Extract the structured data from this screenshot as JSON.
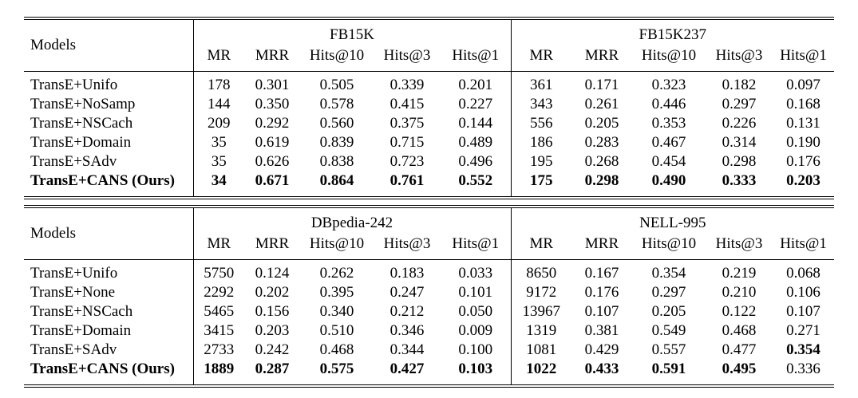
{
  "page": {
    "background_color": "#ffffff",
    "text_color": "#000000",
    "rule_color": "#000000"
  },
  "tables": [
    {
      "models_header": "Models",
      "groups": [
        {
          "name": "FB15K",
          "metrics": [
            "MR",
            "MRR",
            "Hits@10",
            "Hits@3",
            "Hits@1"
          ]
        },
        {
          "name": "FB15K237",
          "metrics": [
            "MR",
            "MRR",
            "Hits@10",
            "Hits@3",
            "Hits@1"
          ]
        }
      ],
      "rows": [
        {
          "model": "TransE+Unifo",
          "model_bold": false,
          "values": [
            "178",
            "0.301",
            "0.505",
            "0.339",
            "0.201",
            "361",
            "0.171",
            "0.323",
            "0.182",
            "0.097"
          ],
          "bold": [
            false,
            false,
            false,
            false,
            false,
            false,
            false,
            false,
            false,
            false
          ]
        },
        {
          "model": "TransE+NoSamp",
          "model_bold": false,
          "values": [
            "144",
            "0.350",
            "0.578",
            "0.415",
            "0.227",
            "343",
            "0.261",
            "0.446",
            "0.297",
            "0.168"
          ],
          "bold": [
            false,
            false,
            false,
            false,
            false,
            false,
            false,
            false,
            false,
            false
          ]
        },
        {
          "model": "TransE+NSCach",
          "model_bold": false,
          "values": [
            "209",
            "0.292",
            "0.560",
            "0.375",
            "0.144",
            "556",
            "0.205",
            "0.353",
            "0.226",
            "0.131"
          ],
          "bold": [
            false,
            false,
            false,
            false,
            false,
            false,
            false,
            false,
            false,
            false
          ]
        },
        {
          "model": "TransE+Domain",
          "model_bold": false,
          "values": [
            "35",
            "0.619",
            "0.839",
            "0.715",
            "0.489",
            "186",
            "0.283",
            "0.467",
            "0.314",
            "0.190"
          ],
          "bold": [
            false,
            false,
            false,
            false,
            false,
            false,
            false,
            false,
            false,
            false
          ]
        },
        {
          "model": "TransE+SAdv",
          "model_bold": false,
          "values": [
            "35",
            "0.626",
            "0.838",
            "0.723",
            "0.496",
            "195",
            "0.268",
            "0.454",
            "0.298",
            "0.176"
          ],
          "bold": [
            false,
            false,
            false,
            false,
            false,
            false,
            false,
            false,
            false,
            false
          ]
        },
        {
          "model": "TransE+CANS (Ours)",
          "model_bold": true,
          "values": [
            "34",
            "0.671",
            "0.864",
            "0.761",
            "0.552",
            "175",
            "0.298",
            "0.490",
            "0.333",
            "0.203"
          ],
          "bold": [
            true,
            true,
            true,
            true,
            true,
            true,
            true,
            true,
            true,
            true
          ]
        }
      ]
    },
    {
      "models_header": "Models",
      "groups": [
        {
          "name": "DBpedia-242",
          "metrics": [
            "MR",
            "MRR",
            "Hits@10",
            "Hits@3",
            "Hits@1"
          ]
        },
        {
          "name": "NELL-995",
          "metrics": [
            "MR",
            "MRR",
            "Hits@10",
            "Hits@3",
            "Hits@1"
          ]
        }
      ],
      "rows": [
        {
          "model": "TransE+Unifo",
          "model_bold": false,
          "values": [
            "5750",
            "0.124",
            "0.262",
            "0.183",
            "0.033",
            "8650",
            "0.167",
            "0.354",
            "0.219",
            "0.068"
          ],
          "bold": [
            false,
            false,
            false,
            false,
            false,
            false,
            false,
            false,
            false,
            false
          ]
        },
        {
          "model": "TransE+None",
          "model_bold": false,
          "values": [
            "2292",
            "0.202",
            "0.395",
            "0.247",
            "0.101",
            "9172",
            "0.176",
            "0.297",
            "0.210",
            "0.106"
          ],
          "bold": [
            false,
            false,
            false,
            false,
            false,
            false,
            false,
            false,
            false,
            false
          ]
        },
        {
          "model": "TransE+NSCach",
          "model_bold": false,
          "values": [
            "5465",
            "0.156",
            "0.340",
            "0.212",
            "0.050",
            "13967",
            "0.107",
            "0.205",
            "0.122",
            "0.107"
          ],
          "bold": [
            false,
            false,
            false,
            false,
            false,
            false,
            false,
            false,
            false,
            false
          ]
        },
        {
          "model": "TransE+Domain",
          "model_bold": false,
          "values": [
            "3415",
            "0.203",
            "0.510",
            "0.346",
            "0.009",
            "1319",
            "0.381",
            "0.549",
            "0.468",
            "0.271"
          ],
          "bold": [
            false,
            false,
            false,
            false,
            false,
            false,
            false,
            false,
            false,
            false
          ]
        },
        {
          "model": "TransE+SAdv",
          "model_bold": false,
          "values": [
            "2733",
            "0.242",
            "0.468",
            "0.344",
            "0.100",
            "1081",
            "0.429",
            "0.557",
            "0.477",
            "0.354"
          ],
          "bold": [
            false,
            false,
            false,
            false,
            false,
            false,
            false,
            false,
            false,
            true
          ]
        },
        {
          "model": "TransE+CANS (Ours)",
          "model_bold": true,
          "values": [
            "1889",
            "0.287",
            "0.575",
            "0.427",
            "0.103",
            "1022",
            "0.433",
            "0.591",
            "0.495",
            "0.336"
          ],
          "bold": [
            true,
            true,
            true,
            true,
            true,
            true,
            true,
            true,
            true,
            false
          ]
        }
      ]
    }
  ]
}
